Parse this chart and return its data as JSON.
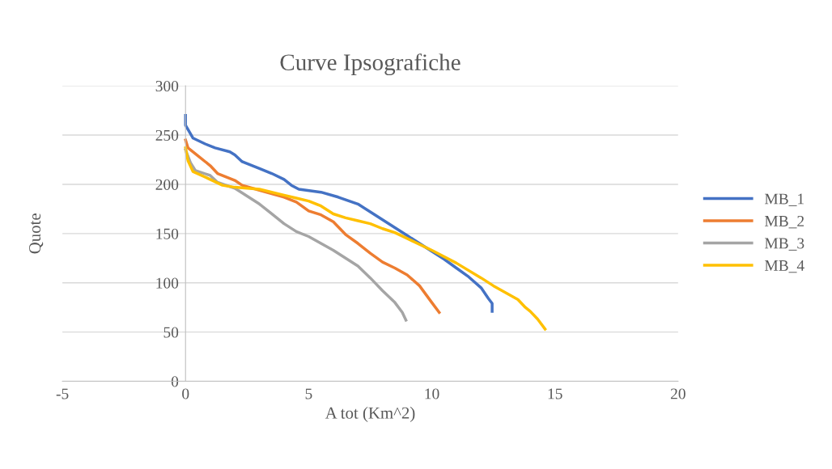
{
  "chart_data": {
    "type": "line",
    "title": "Curve Ipsografiche",
    "xlabel": "A tot (Km^2)",
    "ylabel": "Quote",
    "xlim": [
      -5,
      20
    ],
    "xticks": [
      -5,
      0,
      5,
      10,
      15,
      20
    ],
    "ylim": [
      0,
      300
    ],
    "yticks": [
      0,
      50,
      100,
      150,
      200,
      250,
      300
    ],
    "grid": "y",
    "legend": "right",
    "marker": "none",
    "line_style": "solid",
    "series": [
      {
        "name": "MB_1",
        "color": "#4472c4",
        "x": [
          0,
          0,
          0.3,
          0.8,
          1.2,
          1.8,
          2,
          2.3,
          3,
          3.5,
          4,
          4.3,
          4.6,
          5.5,
          6.2,
          7,
          7.5,
          8,
          8.5,
          9,
          9.5,
          10,
          10.5,
          11,
          11.5,
          12,
          12.3,
          12.45,
          12.45
        ],
        "values": [
          270,
          260,
          247,
          241,
          237,
          233,
          230,
          223,
          216,
          211,
          205,
          199,
          195,
          192,
          187,
          180,
          172,
          164,
          156,
          148,
          140,
          132,
          124,
          115,
          106,
          95,
          84,
          79,
          71
        ]
      },
      {
        "name": "MB_2",
        "color": "#ed7d31",
        "x": [
          0,
          0.1,
          0.5,
          1,
          1.3,
          2,
          2.3,
          3,
          4,
          4.5,
          5,
          5.5,
          6,
          6.5,
          7,
          7.5,
          8,
          8.5,
          9,
          9.5,
          10,
          10.3
        ],
        "values": [
          245,
          237,
          229,
          219,
          211,
          204,
          199,
          194,
          187,
          182,
          173,
          169,
          162,
          149,
          140,
          130,
          121,
          115,
          108,
          97,
          80,
          70
        ]
      },
      {
        "name": "MB_3",
        "color": "#a5a5a5",
        "x": [
          0,
          0.2,
          0.4,
          1,
          1.3,
          2,
          2.5,
          3,
          3.5,
          4,
          4.5,
          5,
          5.5,
          6,
          6.5,
          7,
          7.5,
          8,
          8.5,
          8.8,
          8.95
        ],
        "values": [
          235,
          222,
          214,
          209,
          202,
          196,
          188,
          180,
          170,
          160,
          152,
          147,
          140,
          133,
          125,
          117,
          105,
          92,
          80,
          70,
          62
        ]
      },
      {
        "name": "MB_4",
        "color": "#ffc000",
        "x": [
          0,
          0.1,
          0.3,
          1,
          1.5,
          2,
          3,
          4,
          4.5,
          5,
          5.5,
          6,
          6.5,
          7,
          7.5,
          8,
          8.5,
          9,
          10,
          11,
          12,
          12.5,
          13,
          13.5,
          13.8,
          14,
          14.3,
          14.6
        ],
        "values": [
          237,
          224,
          213,
          205,
          199,
          197,
          195,
          189,
          186,
          183,
          178,
          170,
          166,
          163,
          160,
          155,
          151,
          145,
          133,
          120,
          105,
          97,
          90,
          83,
          75,
          71,
          63,
          53
        ]
      }
    ]
  }
}
